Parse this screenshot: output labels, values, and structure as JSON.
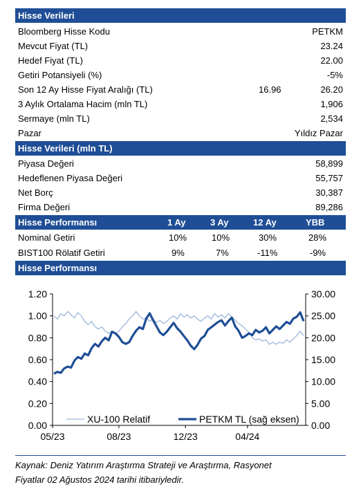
{
  "section1": {
    "title": "Hisse Verileri",
    "rows": [
      {
        "label": "Bloomberg Hisse Kodu",
        "value": "PETKM"
      },
      {
        "label": "Mevcut Fiyat (TL)",
        "value": "23.24"
      },
      {
        "label": "Hedef Fiyat (TL)",
        "value": "22.00"
      },
      {
        "label": "Getiri Potansiyeli (%)",
        "value": "-5%"
      },
      {
        "label": "Son 12 Ay Hisse Fiyat Aralığı (TL)",
        "low": "16.96",
        "value": "26.20"
      },
      {
        "label": "3 Aylık Ortalama Hacim (mln TL)",
        "value": "1,906"
      },
      {
        "label": "Sermaye (mln TL)",
        "value": "2,534"
      },
      {
        "label": "Pazar",
        "value": "Yıldız Pazar"
      }
    ]
  },
  "section2": {
    "title": "Hisse Verileri (mln TL)",
    "rows": [
      {
        "label": "Piyasa Değeri",
        "value": "58,899"
      },
      {
        "label": "Hedeflenen Piyasa Değeri",
        "value": "55,757"
      },
      {
        "label": "Net Borç",
        "value": "30,387"
      },
      {
        "label": "Firma Değeri",
        "value": "89,286"
      }
    ]
  },
  "section3": {
    "title": "Hisse Performansı",
    "columns": [
      "1 Ay",
      "3 Ay",
      "12 Ay",
      "YBB"
    ],
    "rows": [
      {
        "label": "Nominal Getiri",
        "values": [
          "10%",
          "10%",
          "30%",
          "28%"
        ]
      },
      {
        "label": "BIST100 Rölatif Getiri",
        "values": [
          "9%",
          "7%",
          "-11%",
          "-9%"
        ]
      }
    ]
  },
  "section4": {
    "title": "Hisse Performansı"
  },
  "colors": {
    "header_bg": "#1f4e96",
    "petkm_line": "#1f4e96",
    "xu100_line": "#9db6dc"
  },
  "chart_data": {
    "type": "line",
    "x_tick_labels": [
      "05/23",
      "08/23",
      "12/23",
      "04/24"
    ],
    "y_left": {
      "ticks": [
        "1.20",
        "1.00",
        "0.80",
        "0.60",
        "0.40",
        "0.20",
        "0.00"
      ],
      "range": [
        0,
        1.2
      ]
    },
    "y_right": {
      "ticks": [
        "30.00",
        "25.00",
        "20.00",
        "15.00",
        "10.00",
        "5.00",
        "0.00"
      ],
      "range": [
        0,
        30
      ]
    },
    "grid": false,
    "legend_position": "bottom",
    "series": [
      {
        "name": "XU-100 Relatif",
        "axis": "left",
        "color": "#9db6dc",
        "values": [
          1.0,
          0.97,
          1.02,
          1.0,
          1.04,
          1.01,
          0.98,
          1.03,
          1.0,
          0.95,
          0.92,
          0.95,
          0.9,
          0.88,
          0.9,
          0.86,
          0.84,
          0.86,
          0.83,
          0.86,
          0.9,
          0.93,
          0.97,
          1.0,
          1.04,
          1.0,
          0.97,
          0.98,
          0.95,
          0.97,
          0.94,
          0.96,
          0.93,
          0.95,
          0.98,
          1.0,
          0.97,
          1.02,
          0.99,
          1.01,
          0.98,
          1.0,
          0.97,
          0.95,
          0.98,
          1.0,
          0.97,
          1.02,
          0.99,
          1.01,
          0.98,
          1.02,
          0.99,
          0.96,
          0.93,
          0.91,
          0.88,
          0.85,
          0.8,
          0.78,
          0.79,
          0.77,
          0.78,
          0.74,
          0.76,
          0.74,
          0.76,
          0.75,
          0.78,
          0.76,
          0.79,
          0.82,
          0.86,
          0.82
        ]
      },
      {
        "name": "PETKM TL (sağ eksen)",
        "axis": "right",
        "color": "#1f4e96",
        "values": [
          11.8,
          12.2,
          12.0,
          13.0,
          13.4,
          13.2,
          14.8,
          15.6,
          15.2,
          16.4,
          16.0,
          17.6,
          18.6,
          18.0,
          19.2,
          20.0,
          19.4,
          21.4,
          21.0,
          20.2,
          19.0,
          18.6,
          19.0,
          20.4,
          21.6,
          22.4,
          22.0,
          24.4,
          25.6,
          24.0,
          22.6,
          21.2,
          20.6,
          21.4,
          22.4,
          23.4,
          22.2,
          21.4,
          20.4,
          19.4,
          18.2,
          17.4,
          18.4,
          19.8,
          20.4,
          21.8,
          22.4,
          23.0,
          23.6,
          24.0,
          22.8,
          23.8,
          24.6,
          22.6,
          21.6,
          20.0,
          20.4,
          21.0,
          20.6,
          21.8,
          21.2,
          21.6,
          22.4,
          21.0,
          21.8,
          22.6,
          22.0,
          22.8,
          23.6,
          23.2,
          24.4,
          24.8,
          25.8,
          23.8
        ]
      }
    ]
  },
  "source": {
    "line1": "Kaynak: Deniz Yatırım Araştırma Strateji ve Araştırma, Rasyonet",
    "line2": "Fiyatlar 02 Ağustos 2024 tarihi itibariyledir."
  }
}
